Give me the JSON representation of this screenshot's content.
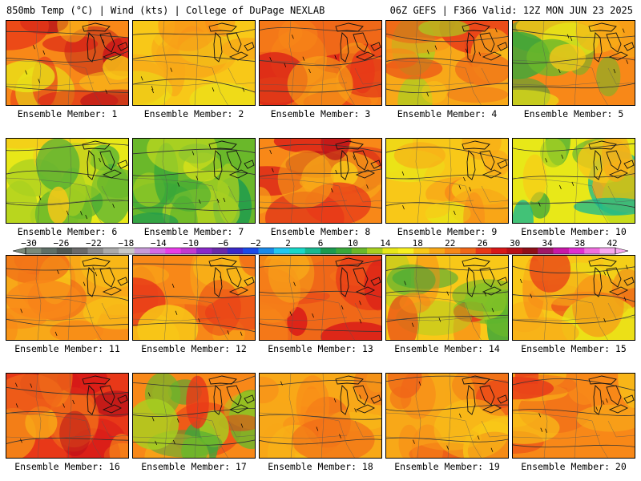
{
  "header": {
    "left_title": "850mb Temp (°C) | Wind (kts) | College of DuPage NEXLAB",
    "right_title": "06Z GEFS | F366 Valid: 12Z MON JUN 23 2025"
  },
  "colorbar": {
    "labels": [
      "−30",
      "−26",
      "−22",
      "−18",
      "−14",
      "−10",
      "−6",
      "−2",
      "2",
      "6",
      "10",
      "14",
      "18",
      "22",
      "26",
      "30",
      "34",
      "38",
      "42"
    ],
    "values": [
      -30,
      -26,
      -22,
      -18,
      -14,
      -10,
      -6,
      -2,
      2,
      6,
      10,
      14,
      18,
      22,
      26,
      30,
      34,
      38,
      42
    ],
    "colors": [
      "#7a8a7a",
      "#5f6f67",
      "#4f5752",
      "#6a6a6a",
      "#8a8a8a",
      "#aaaaaa",
      "#c8c8c8",
      "#c79ad8",
      "#d56ce6",
      "#e83ee8",
      "#c23ad0",
      "#8a2ac8",
      "#6a2aa8",
      "#3a2ac8",
      "#1a4ae8",
      "#1a8ae8",
      "#22c8f0",
      "#18d8c8",
      "#18b890",
      "#1a9a50",
      "#3aa83a",
      "#6ab82a",
      "#a8d020",
      "#e8e818",
      "#f8f020",
      "#f8c818",
      "#f8a818",
      "#f88818",
      "#f06818",
      "#e83818",
      "#d81818",
      "#b81018",
      "#901018",
      "#a01868",
      "#c818a8",
      "#e030d0",
      "#f070e0",
      "#f8a8f0"
    ]
  },
  "panels": [
    {
      "label": "Ensemble Member: 1"
    },
    {
      "label": "Ensemble Member: 2"
    },
    {
      "label": "Ensemble Member: 3"
    },
    {
      "label": "Ensemble Member: 4"
    },
    {
      "label": "Ensemble Member: 5"
    },
    {
      "label": "Ensemble Member: 6"
    },
    {
      "label": "Ensemble Member: 7"
    },
    {
      "label": "Ensemble Member: 8"
    },
    {
      "label": "Ensemble Member: 9"
    },
    {
      "label": "Ensemble Member: 10"
    },
    {
      "label": "Ensemble Member: 11"
    },
    {
      "label": "Ensemble Member: 12"
    },
    {
      "label": "Ensemble Member: 13"
    },
    {
      "label": "Ensemble Member: 14"
    },
    {
      "label": "Ensemble Member: 15"
    },
    {
      "label": "Ensemble Member: 16"
    },
    {
      "label": "Ensemble Member: 17"
    },
    {
      "label": "Ensemble Member: 18"
    },
    {
      "label": "Ensemble Member: 19"
    },
    {
      "label": "Ensemble Member: 20"
    }
  ],
  "chart_data": {
    "type": "heatmap",
    "title": "850mb Temp (°C) | Wind (kts)",
    "value_range": [
      -30,
      42
    ],
    "members": [
      1,
      2,
      3,
      4,
      5,
      6,
      7,
      8,
      9,
      10,
      11,
      12,
      13,
      14,
      15,
      16,
      17,
      18,
      19,
      20
    ]
  }
}
